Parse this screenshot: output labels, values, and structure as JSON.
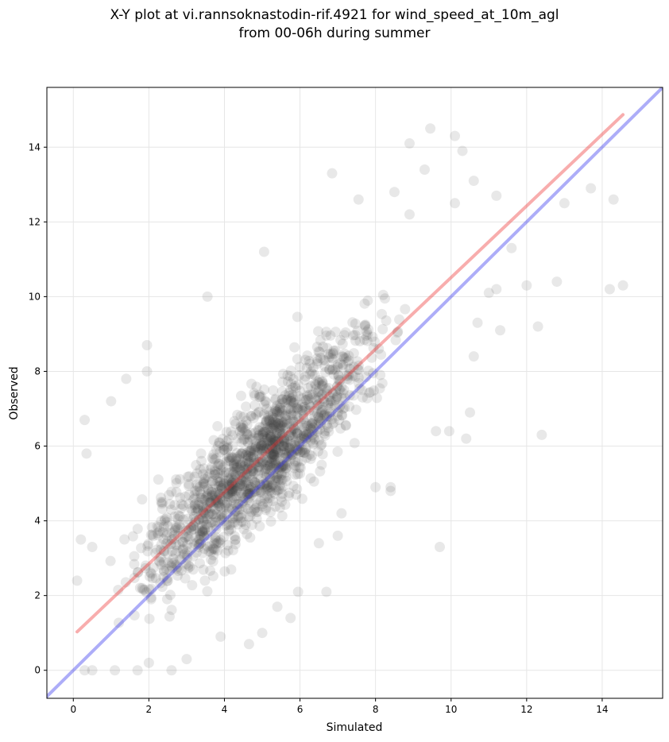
{
  "chart_data": {
    "type": "scatter",
    "title_lines": [
      "X-Y plot at vi.rannsoknastodin-rif.4921 for wind_speed_at_10m_agl",
      "from 00-06h during summer"
    ],
    "xlabel": "Simulated",
    "ylabel": "Observed",
    "xlim": [
      -0.7,
      15.6
    ],
    "ylim": [
      -0.75,
      15.6
    ],
    "xticks": [
      0,
      2,
      4,
      6,
      8,
      10,
      12,
      14
    ],
    "yticks": [
      0,
      2,
      4,
      6,
      8,
      10,
      12,
      14
    ],
    "grid": true,
    "point_color": "#404040",
    "point_alpha": 0.12,
    "identity_line": {
      "color": "#3333ee",
      "x": [
        -0.7,
        15.6
      ],
      "y": [
        -0.7,
        15.6
      ]
    },
    "fit_line": {
      "color": "#ee3333",
      "x": [
        0.1,
        14.55
      ],
      "y": [
        1.03,
        14.87
      ]
    },
    "points": [
      [
        14.55,
        10.3
      ],
      [
        14.2,
        10.2
      ],
      [
        12.8,
        10.4
      ],
      [
        12.4,
        6.3
      ],
      [
        12.0,
        10.3
      ],
      [
        12.3,
        9.2
      ],
      [
        13.0,
        12.5
      ],
      [
        13.7,
        12.9
      ],
      [
        14.3,
        12.6
      ],
      [
        11.6,
        11.3
      ],
      [
        11.3,
        9.1
      ],
      [
        11.0,
        10.1
      ],
      [
        11.2,
        10.2
      ],
      [
        10.5,
        6.9
      ],
      [
        10.4,
        6.2
      ],
      [
        10.6,
        8.4
      ],
      [
        10.7,
        9.3
      ],
      [
        9.95,
        6.4
      ],
      [
        9.6,
        6.4
      ],
      [
        9.7,
        3.3
      ],
      [
        10.1,
        14.3
      ],
      [
        9.45,
        14.5
      ],
      [
        8.9,
        14.1
      ],
      [
        7.55,
        12.6
      ],
      [
        6.85,
        13.3
      ],
      [
        8.5,
        12.8
      ],
      [
        10.3,
        13.9
      ],
      [
        10.6,
        13.1
      ],
      [
        11.2,
        12.7
      ],
      [
        10.1,
        12.5
      ],
      [
        9.3,
        13.4
      ],
      [
        8.9,
        12.2
      ],
      [
        5.05,
        11.2
      ],
      [
        3.55,
        10.0
      ],
      [
        1.95,
        8.7
      ],
      [
        1.95,
        8.0
      ],
      [
        1.4,
        7.8
      ],
      [
        1.0,
        7.2
      ],
      [
        0.3,
        6.7
      ],
      [
        0.35,
        5.8
      ],
      [
        0.2,
        3.5
      ],
      [
        0.1,
        2.4
      ],
      [
        0.5,
        3.3
      ],
      [
        0.3,
        0.0
      ],
      [
        0.5,
        0.0
      ],
      [
        1.1,
        0.0
      ],
      [
        1.7,
        0.0
      ],
      [
        2.6,
        0.0
      ],
      [
        2.0,
        0.2
      ],
      [
        3.0,
        0.3
      ],
      [
        4.65,
        0.7
      ],
      [
        5.0,
        1.0
      ],
      [
        3.9,
        0.9
      ],
      [
        5.75,
        1.4
      ],
      [
        5.4,
        1.7
      ],
      [
        6.7,
        2.1
      ],
      [
        5.95,
        2.1
      ],
      [
        7.1,
        4.2
      ],
      [
        6.5,
        3.4
      ],
      [
        8.4,
        4.9
      ],
      [
        8.4,
        4.8
      ],
      [
        8.0,
        4.9
      ],
      [
        7.0,
        3.6
      ]
    ]
  }
}
